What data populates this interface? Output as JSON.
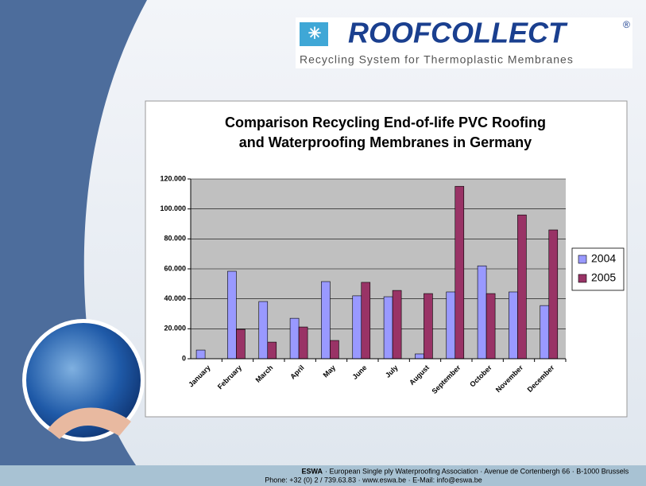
{
  "header": {
    "logo": "ROOFCOLLECT",
    "registered": "®",
    "tagline": "Recycling System for Thermoplastic Membranes"
  },
  "chart_data": {
    "type": "bar",
    "title": [
      "Comparison Recycling End-of-life PVC Roofing",
      "and Waterproofing Membranes in Germany"
    ],
    "categories": [
      "January",
      "February",
      "March",
      "April",
      "May",
      "June",
      "July",
      "August",
      "September",
      "October",
      "November",
      "December"
    ],
    "series": [
      {
        "name": "2004",
        "color": "#9999ff",
        "values": [
          5800,
          58400,
          38200,
          27000,
          51500,
          42000,
          41400,
          3200,
          44600,
          62000,
          44600,
          35500
        ]
      },
      {
        "name": "2005",
        "color": "#993366",
        "values": [
          null,
          19600,
          11100,
          21200,
          12200,
          51000,
          45600,
          43500,
          115100,
          43500,
          96000,
          86000
        ]
      }
    ],
    "ylim": [
      0,
      120000
    ],
    "yticks": [
      0,
      {
        "value": 20000,
        "label": "20.000"
      },
      {
        "value": 40000,
        "label": "40.000"
      },
      {
        "value": 60000,
        "label": "60.000"
      },
      {
        "value": 80000,
        "label": "80.000"
      },
      {
        "value": 100000,
        "label": "100.000"
      },
      {
        "value": 120000,
        "label": "120.000"
      }
    ],
    "grid": true,
    "legend": "right"
  },
  "footer": {
    "org": "ESWA",
    "address": "· European Single ply Waterproofing Association · Avenue de Cortenbergh 66 · B-1000 Brussels",
    "contact": "Phone: +32 (0) 2 / 739.63.83 · www.eswa.be · E-Mail: info@eswa.be"
  }
}
